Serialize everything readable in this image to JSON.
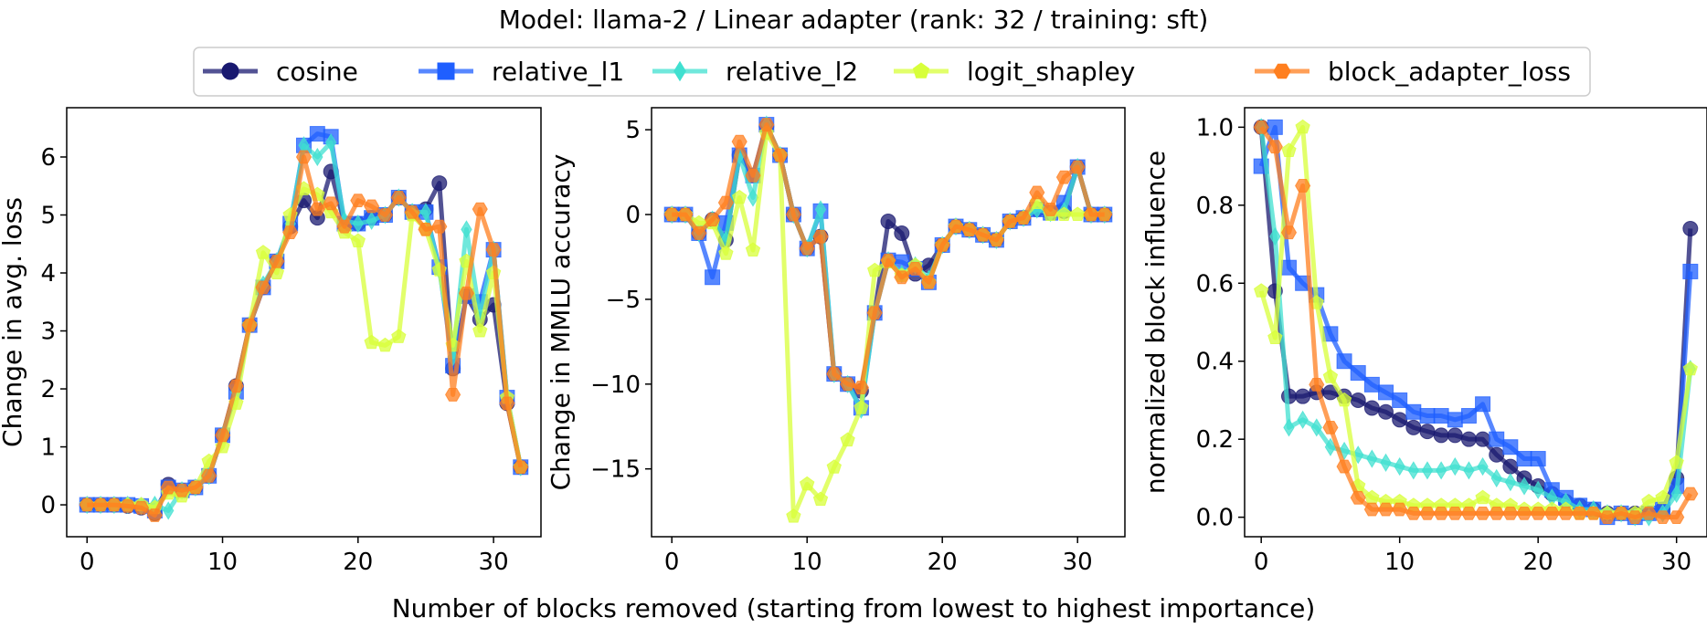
{
  "figure": {
    "title": "Model: llama-2 / Linear adapter (rank: 32 / training: sft)",
    "xlabel": "Number of blocks removed (starting from lowest to highest importance)"
  },
  "legend": {
    "placement": "top-center",
    "entries": [
      {
        "name": "cosine",
        "color": "#191970",
        "marker": "circle"
      },
      {
        "name": "relative_l1",
        "color": "#1f5fff",
        "marker": "square"
      },
      {
        "name": "relative_l2",
        "color": "#40e0d0",
        "marker": "diamond"
      },
      {
        "name": "logit_shapley",
        "color": "#d8ff3a",
        "marker": "pentagon"
      },
      {
        "name": "block_adapter_loss",
        "color": "#ff7f1f",
        "marker": "hexagon"
      }
    ]
  },
  "chart_data": [
    {
      "type": "line",
      "ylabel": "Change in avg. loss",
      "xlim": [
        -1.5,
        33.5
      ],
      "ylim": [
        -0.55,
        6.85
      ],
      "xticks": [
        0,
        10,
        20,
        30
      ],
      "yticks": [
        0,
        1,
        2,
        3,
        4,
        5,
        6
      ],
      "x": [
        0,
        1,
        2,
        3,
        4,
        5,
        6,
        7,
        8,
        9,
        10,
        11,
        12,
        13,
        14,
        15,
        16,
        17,
        18,
        19,
        20,
        21,
        22,
        23,
        24,
        25,
        26,
        27,
        28,
        29,
        30,
        31,
        32
      ],
      "series": [
        {
          "name": "cosine",
          "values": [
            0,
            0,
            0,
            -0.02,
            -0.05,
            -0.15,
            0.35,
            0.25,
            0.3,
            0.5,
            1.2,
            2.05,
            3.1,
            3.75,
            4.2,
            4.8,
            5.25,
            4.95,
            5.75,
            4.85,
            4.85,
            4.95,
            5.0,
            5.3,
            5.05,
            5.1,
            5.55,
            2.35,
            3.6,
            3.2,
            3.45,
            1.75,
            0.65
          ]
        },
        {
          "name": "relative_l1",
          "values": [
            0,
            0,
            0,
            0,
            -0.02,
            -0.1,
            0.3,
            0.25,
            0.3,
            0.5,
            1.2,
            1.95,
            3.1,
            3.75,
            4.2,
            4.85,
            6.2,
            6.4,
            6.35,
            4.85,
            4.85,
            4.95,
            5.0,
            5.3,
            5.05,
            5.05,
            4.1,
            2.4,
            3.6,
            3.5,
            4.4,
            1.85,
            0.65
          ]
        },
        {
          "name": "relative_l2",
          "values": [
            0,
            0,
            0,
            0,
            -0.02,
            0,
            -0.1,
            0.25,
            0.3,
            0.5,
            1.2,
            1.95,
            3.1,
            3.8,
            4.2,
            4.85,
            6.2,
            6.0,
            6.25,
            4.9,
            4.85,
            4.9,
            5.0,
            5.3,
            5.05,
            5.05,
            4.05,
            2.55,
            4.75,
            3.25,
            4.4,
            1.85,
            0.65
          ]
        },
        {
          "name": "logit_shapley",
          "values": [
            0,
            0,
            0,
            0,
            0,
            -0.05,
            0.2,
            0.15,
            0.3,
            0.75,
            1.0,
            1.75,
            3.1,
            4.35,
            4.0,
            5.0,
            5.45,
            5.35,
            5.05,
            4.7,
            4.55,
            2.8,
            2.75,
            2.9,
            5.0,
            4.75,
            4.05,
            2.75,
            4.2,
            3.0,
            4.0,
            1.85,
            0.65
          ]
        },
        {
          "name": "block_adapter_loss",
          "values": [
            0,
            0,
            0,
            -0.02,
            -0.05,
            -0.18,
            0.3,
            0.25,
            0.3,
            0.5,
            1.2,
            2.05,
            3.1,
            3.75,
            4.2,
            4.7,
            6.0,
            5.1,
            5.2,
            4.8,
            5.25,
            5.15,
            5.0,
            5.3,
            5.05,
            4.75,
            4.8,
            1.9,
            3.65,
            5.1,
            4.4,
            1.75,
            0.65
          ]
        }
      ]
    },
    {
      "type": "line",
      "ylabel": "Change in MMLU accuracy",
      "xlim": [
        -1.5,
        33.5
      ],
      "ylim": [
        -19.0,
        6.3
      ],
      "xticks": [
        0,
        10,
        20,
        30
      ],
      "yticks": [
        5,
        0,
        -5,
        -10,
        -15
      ],
      "x": [
        0,
        1,
        2,
        3,
        4,
        5,
        6,
        7,
        8,
        9,
        10,
        11,
        12,
        13,
        14,
        15,
        16,
        17,
        18,
        19,
        20,
        21,
        22,
        23,
        24,
        25,
        26,
        27,
        28,
        29,
        30,
        31,
        32
      ],
      "series": [
        {
          "name": "cosine",
          "values": [
            0,
            0,
            -1.1,
            -0.3,
            -1.5,
            3.5,
            2.3,
            5.2,
            3.5,
            0,
            -2.0,
            -1.3,
            -9.4,
            -10.0,
            -10.4,
            -5.8,
            -0.4,
            -1.1,
            -3.5,
            -3.0,
            -1.8,
            -0.7,
            -0.9,
            -1.2,
            -1.5,
            -0.4,
            -0.2,
            0.3,
            0.1,
            0.2,
            2.8,
            0,
            0
          ]
        },
        {
          "name": "relative_l1",
          "values": [
            0,
            0,
            -1.1,
            -3.7,
            -0.5,
            3.5,
            2.3,
            5.3,
            3.5,
            0,
            -2.0,
            0.2,
            -9.4,
            -10.0,
            -11.4,
            -5.8,
            -2.7,
            -2.8,
            -3.2,
            -4.0,
            -1.8,
            -0.7,
            -0.9,
            -1.2,
            -1.5,
            -0.4,
            -0.2,
            0.3,
            0.1,
            0.7,
            2.8,
            0,
            0
          ]
        },
        {
          "name": "relative_l2",
          "values": [
            0,
            0,
            -1.1,
            -0.3,
            -1.5,
            3.5,
            1.0,
            5.3,
            3.5,
            0,
            -2.0,
            0.3,
            -9.4,
            -10.0,
            -11.5,
            -5.8,
            -2.7,
            -3.5,
            -3.0,
            -3.8,
            -1.8,
            -0.7,
            -0.9,
            -1.2,
            -1.5,
            -0.4,
            -0.2,
            0.3,
            0.1,
            0.2,
            2.8,
            0,
            0
          ]
        },
        {
          "name": "logit_shapley",
          "values": [
            0,
            0,
            -0.5,
            -0.5,
            -2.3,
            1.0,
            -2.1,
            4.8,
            3.5,
            -17.8,
            -15.9,
            -16.8,
            -14.9,
            -13.3,
            -11.4,
            -3.3,
            -2.8,
            -3.6,
            -3.0,
            -4.0,
            -1.8,
            -0.7,
            -0.9,
            -1.2,
            -1.5,
            -0.4,
            -0.2,
            0.7,
            0,
            0,
            0,
            0,
            0
          ]
        },
        {
          "name": "block_adapter_loss",
          "values": [
            0,
            0,
            -1.1,
            -0.3,
            0.7,
            4.3,
            2.3,
            5.3,
            3.5,
            0,
            -2.0,
            -1.3,
            -9.4,
            -10.0,
            -10.2,
            -5.8,
            -2.7,
            -3.7,
            -3.2,
            -4.0,
            -1.8,
            -0.7,
            -0.9,
            -1.2,
            -1.5,
            -0.4,
            -0.2,
            1.3,
            0.3,
            2.2,
            2.8,
            0,
            0
          ]
        }
      ]
    },
    {
      "type": "line",
      "ylabel": "normalized block influence",
      "xlim": [
        -1.2,
        32.2
      ],
      "ylim": [
        -0.05,
        1.05
      ],
      "xticks": [
        0,
        10,
        20,
        30
      ],
      "yticks": [
        0.0,
        0.2,
        0.4,
        0.6,
        0.8,
        1.0
      ],
      "x": [
        0,
        1,
        2,
        3,
        4,
        5,
        6,
        7,
        8,
        9,
        10,
        11,
        12,
        13,
        14,
        15,
        16,
        17,
        18,
        19,
        20,
        21,
        22,
        23,
        24,
        25,
        26,
        27,
        28,
        29,
        30,
        31
      ],
      "series": [
        {
          "name": "cosine",
          "values": [
            1.0,
            0.58,
            0.31,
            0.31,
            0.32,
            0.32,
            0.31,
            0.3,
            0.28,
            0.27,
            0.25,
            0.23,
            0.22,
            0.21,
            0.21,
            0.2,
            0.2,
            0.16,
            0.13,
            0.1,
            0.08,
            0.06,
            0.04,
            0.03,
            0.02,
            0.01,
            0.01,
            0.01,
            0.01,
            0.02,
            0.1,
            0.74
          ]
        },
        {
          "name": "relative_l1",
          "values": [
            0.9,
            1.0,
            0.64,
            0.6,
            0.57,
            0.47,
            0.4,
            0.37,
            0.34,
            0.32,
            0.3,
            0.27,
            0.26,
            0.26,
            0.25,
            0.26,
            0.29,
            0.2,
            0.18,
            0.15,
            0.15,
            0.07,
            0.05,
            0.03,
            0.02,
            0.0,
            0.01,
            0.0,
            0.01,
            0.02,
            0.08,
            0.63
          ]
        },
        {
          "name": "relative_l2",
          "values": [
            1.0,
            0.72,
            0.23,
            0.25,
            0.23,
            0.18,
            0.17,
            0.16,
            0.15,
            0.14,
            0.13,
            0.12,
            0.12,
            0.12,
            0.13,
            0.12,
            0.13,
            0.1,
            0.09,
            0.08,
            0.07,
            0.05,
            0.04,
            0.02,
            0.02,
            0.01,
            0.01,
            0.0,
            0.0,
            0.01,
            0.06,
            0.38
          ]
        },
        {
          "name": "logit_shapley",
          "values": [
            0.58,
            0.46,
            0.94,
            1.0,
            0.55,
            0.36,
            0.3,
            0.08,
            0.05,
            0.04,
            0.04,
            0.03,
            0.03,
            0.03,
            0.03,
            0.03,
            0.05,
            0.03,
            0.03,
            0.02,
            0.02,
            0.02,
            0.02,
            0.01,
            0.01,
            0.01,
            0.01,
            0.01,
            0.04,
            0.05,
            0.14,
            0.38
          ]
        },
        {
          "name": "block_adapter_loss",
          "values": [
            1.0,
            0.95,
            0.73,
            0.85,
            0.34,
            0.23,
            0.13,
            0.05,
            0.02,
            0.02,
            0.02,
            0.01,
            0.01,
            0.01,
            0.01,
            0.01,
            0.01,
            0.01,
            0.01,
            0.01,
            0.01,
            0.01,
            0.01,
            0.01,
            0.01,
            0.0,
            0.01,
            0.0,
            0.01,
            0.0,
            0.0,
            0.06
          ]
        }
      ]
    }
  ]
}
